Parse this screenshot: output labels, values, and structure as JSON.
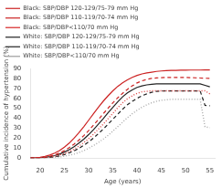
{
  "chart_data": {
    "type": "line",
    "xlabel": "Age (years)",
    "ylabel": "Cumulative incidence of hypertension (%)",
    "x": [
      18,
      19,
      20,
      21,
      22,
      23,
      24,
      25,
      26,
      27,
      28,
      29,
      30,
      31,
      32,
      33,
      34,
      35,
      36,
      37,
      38,
      39,
      40,
      41,
      42,
      43,
      44,
      45,
      46,
      47,
      48,
      49,
      50,
      51,
      52,
      53,
      54,
      55
    ],
    "series": [
      {
        "name": "Black: SBP/DBP 120-129/75-79 mm Hg",
        "color": "#cc2222",
        "line_style": "solid",
        "values": [
          0,
          0.3,
          0.8,
          1.8,
          3.0,
          5.0,
          7.5,
          11.0,
          15.0,
          20.0,
          25.5,
          31.5,
          38.0,
          44.5,
          51.0,
          57.0,
          62.5,
          67.5,
          72.0,
          75.5,
          78.5,
          81.0,
          83.0,
          84.5,
          85.5,
          86.3,
          87.0,
          87.5,
          87.8,
          88.0,
          88.1,
          88.2,
          88.3,
          88.4,
          88.4,
          88.4,
          88.5,
          88.5
        ]
      },
      {
        "name": "Black: SBP/DBP 110-119/70-74 mm Hg",
        "color": "#cc2222",
        "line_style": "dashed",
        "values": [
          0,
          0.1,
          0.4,
          0.9,
          1.8,
          3.2,
          5.0,
          7.5,
          10.5,
          14.0,
          18.0,
          22.5,
          27.5,
          33.0,
          38.5,
          44.5,
          50.0,
          55.5,
          60.5,
          65.0,
          69.0,
          72.5,
          75.5,
          77.5,
          79.0,
          80.0,
          80.5,
          80.8,
          80.9,
          81.0,
          81.0,
          81.0,
          81.0,
          80.8,
          80.6,
          80.4,
          80.2,
          80.0
        ]
      },
      {
        "name": "Black: SBP/DBP<110/70 mm Hg",
        "color": "#dd4444",
        "line_style": "dotted",
        "values": [
          0,
          0.05,
          0.2,
          0.5,
          1.0,
          1.8,
          3.0,
          4.5,
          6.5,
          9.0,
          12.0,
          15.5,
          19.5,
          24.0,
          29.0,
          34.0,
          39.5,
          45.0,
          50.5,
          55.5,
          59.5,
          62.5,
          65.0,
          66.5,
          67.0,
          67.5,
          67.5,
          67.5,
          67.5,
          67.5,
          67.5,
          67.5,
          67.5,
          67.5,
          67.5,
          67.5,
          67.5,
          64.5
        ]
      },
      {
        "name": "White: SBP/DBP 120-129/75-79 mm Hg",
        "color": "#222222",
        "line_style": "solid",
        "values": [
          0,
          0.1,
          0.3,
          0.7,
          1.4,
          2.5,
          4.0,
          6.0,
          8.5,
          11.5,
          15.0,
          19.0,
          23.5,
          28.5,
          34.0,
          39.5,
          45.5,
          51.0,
          56.5,
          61.5,
          65.5,
          68.5,
          71.0,
          72.5,
          73.5,
          74.0,
          74.5,
          74.5,
          74.5,
          74.5,
          74.5,
          74.5,
          74.5,
          74.5,
          74.5,
          74.5,
          73.0,
          71.5
        ]
      },
      {
        "name": "White: SBP/DBP 110-119/70-74 mm Hg",
        "color": "#222222",
        "line_style": "dashed",
        "values": [
          0,
          0.05,
          0.15,
          0.35,
          0.7,
          1.3,
          2.2,
          3.5,
          5.2,
          7.3,
          9.8,
          12.8,
          16.2,
          20.0,
          24.5,
          29.0,
          34.0,
          39.0,
          44.0,
          49.0,
          53.5,
          57.0,
          60.0,
          62.5,
          64.5,
          66.0,
          67.0,
          67.5,
          67.5,
          67.5,
          67.5,
          67.5,
          67.5,
          67.5,
          67.5,
          67.5,
          53.0,
          52.5
        ]
      },
      {
        "name": "White: SBP/DBP<110/70 mm Hg",
        "color": "#aaaaaa",
        "line_style": "dotted",
        "values": [
          0,
          0.02,
          0.08,
          0.18,
          0.35,
          0.65,
          1.1,
          1.8,
          2.8,
          4.0,
          5.5,
          7.5,
          9.8,
          12.5,
          15.5,
          19.0,
          22.8,
          27.0,
          31.5,
          36.0,
          40.5,
          44.5,
          48.0,
          51.0,
          53.5,
          55.5,
          57.0,
          58.0,
          58.5,
          59.0,
          59.0,
          59.0,
          59.0,
          59.0,
          59.0,
          59.0,
          31.5,
          30.5
        ]
      }
    ],
    "xlim": [
      18,
      56
    ],
    "ylim": [
      0,
      90
    ],
    "xticks": [
      20,
      25,
      30,
      35,
      40,
      45,
      50,
      55
    ],
    "yticks": [
      0,
      10,
      20,
      30,
      40,
      50,
      60,
      70,
      80,
      90
    ],
    "legend": "upper left",
    "grid": false
  }
}
